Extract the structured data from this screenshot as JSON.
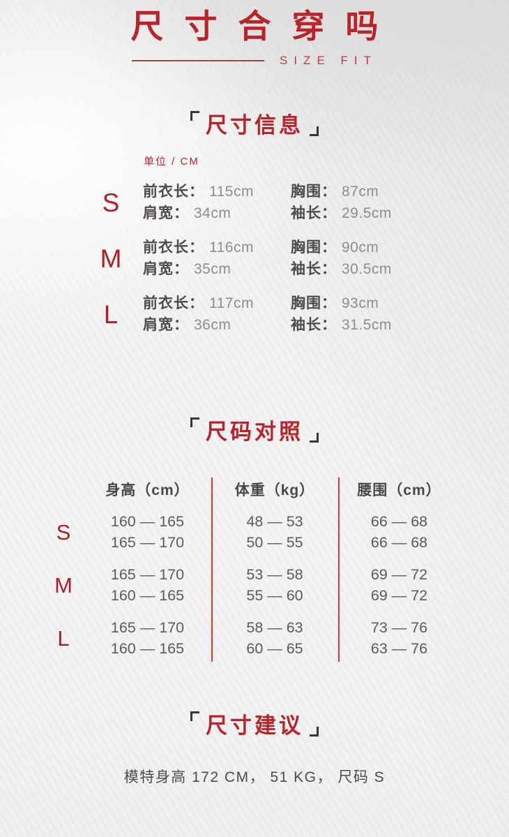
{
  "header": {
    "title": "尺寸合穿吗",
    "subtitle": "SIZE FIT"
  },
  "size_info": {
    "heading": "尺寸信息",
    "unit_label": "单位 / CM",
    "rows": [
      {
        "size": "S",
        "col1": [
          {
            "label": "前衣长：",
            "value": "115cm"
          },
          {
            "label": "肩宽：",
            "value": "34cm"
          }
        ],
        "col2": [
          {
            "label": "胸围：",
            "value": "87cm"
          },
          {
            "label": "袖长：",
            "value": "29.5cm"
          }
        ]
      },
      {
        "size": "M",
        "col1": [
          {
            "label": "前衣长：",
            "value": "116cm"
          },
          {
            "label": "肩宽：",
            "value": "35cm"
          }
        ],
        "col2": [
          {
            "label": "胸围：",
            "value": "90cm"
          },
          {
            "label": "袖长：",
            "value": "30.5cm"
          }
        ]
      },
      {
        "size": "L",
        "col1": [
          {
            "label": "前衣长：",
            "value": "117cm"
          },
          {
            "label": "肩宽：",
            "value": "36cm"
          }
        ],
        "col2": [
          {
            "label": "胸围：",
            "value": "93cm"
          },
          {
            "label": "袖长：",
            "value": "31.5cm"
          }
        ]
      }
    ]
  },
  "size_chart": {
    "heading": "尺码对照",
    "columns": [
      "身高（cm）",
      "体重（kg）",
      "腰围（cm）"
    ],
    "rows": [
      {
        "size": "S",
        "height": [
          "160 — 165",
          "165 — 170"
        ],
        "weight": [
          "48 — 53",
          "50 — 55"
        ],
        "waist": [
          "66 — 68",
          "66 — 68"
        ]
      },
      {
        "size": "M",
        "height": [
          "165 — 170",
          "160 — 165"
        ],
        "weight": [
          "53 — 58",
          "55 — 60"
        ],
        "waist": [
          "69 — 72",
          "69 — 72"
        ]
      },
      {
        "size": "L",
        "height": [
          "165 — 170",
          "160 — 165"
        ],
        "weight": [
          "58 — 63",
          "60 — 65"
        ],
        "waist": [
          "73 — 76",
          "63 — 76"
        ]
      }
    ]
  },
  "size_advice": {
    "heading": "尺寸建议",
    "text": "模特身高 172 CM， 51 KG， 尺码 S"
  },
  "colors": {
    "accent_red": "#b7242a",
    "divider_red": "#cf3a3c",
    "bracket_dark": "#3e3436",
    "label_dark": "#4f4b4c",
    "value_gray": "#8f8d8e",
    "number_gray": "#5c5a5b"
  }
}
